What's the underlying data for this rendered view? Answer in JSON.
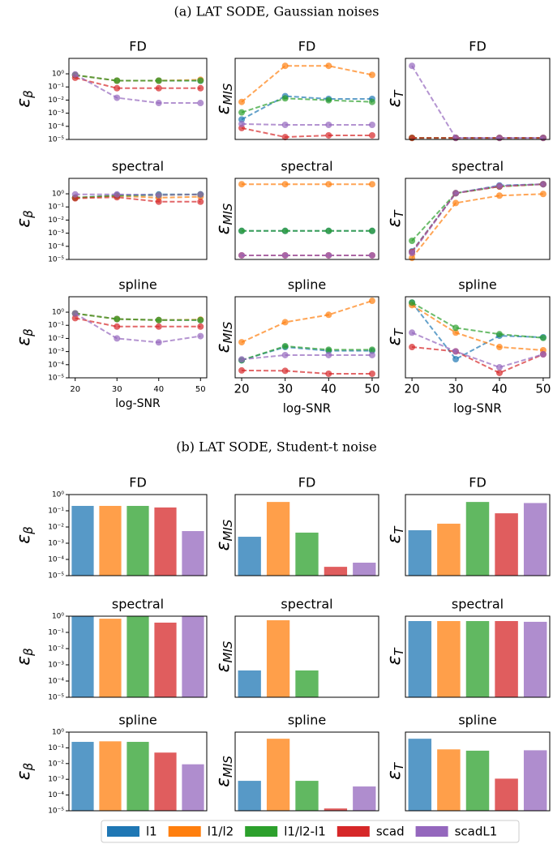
{
  "sections": [
    "(a) LAT SODE, Gaussian noises",
    "(b) LAT SODE, Student-t noise"
  ],
  "legend": [
    {
      "name": "l1",
      "color": "#1f77b4"
    },
    {
      "name": "l1/l2",
      "color": "#ff7f0e"
    },
    {
      "name": "l1/l2-l1",
      "color": "#2ca02c"
    },
    {
      "name": "scad",
      "color": "#d62728"
    },
    {
      "name": "scadL1",
      "color": "#9467bd"
    }
  ],
  "chart_data": [
    {
      "type": "line",
      "title": "FD",
      "ylabel": "ε",
      "ylabel_subscript": "β",
      "x": [
        20,
        30,
        40,
        50
      ],
      "xlim": [
        18.5,
        51.5
      ],
      "ylim": [
        1e-05,
        15
      ],
      "log_y": true,
      "yticks": [
        {
          "value": 1,
          "label": "10⁰"
        },
        {
          "value": 0.1,
          "label": "10⁻¹"
        },
        {
          "value": 0.01,
          "label": "10⁻²"
        },
        {
          "value": 0.001,
          "label": "10⁻³"
        },
        {
          "value": 0.0001,
          "label": "10⁻⁴"
        },
        {
          "value": 1e-05,
          "label": "10⁻⁵"
        }
      ],
      "series": [
        {
          "color": "#1f77b4",
          "values": [
            0.8,
            0.3,
            0.3,
            0.3
          ]
        },
        {
          "color": "#ff7f0e",
          "values": [
            0.8,
            0.3,
            0.3,
            0.35
          ]
        },
        {
          "color": "#2ca02c",
          "values": [
            0.8,
            0.3,
            0.3,
            0.3
          ]
        },
        {
          "color": "#d62728",
          "values": [
            0.5,
            0.08,
            0.08,
            0.08
          ]
        },
        {
          "color": "#9467bd",
          "values": [
            0.9,
            0.015,
            0.006,
            0.006
          ]
        }
      ]
    },
    {
      "type": "line",
      "title": "FD",
      "ylabel": "ε",
      "ylabel_subscript": "MIS",
      "x": [
        20,
        30,
        40,
        50
      ],
      "xlim": [
        18.5,
        51.5
      ],
      "ylim": [
        1e-05,
        10
      ],
      "log_y": true,
      "series": [
        {
          "color": "#1f77b4",
          "values": [
            0.0003,
            0.016,
            0.01,
            0.01
          ]
        },
        {
          "color": "#ff7f0e",
          "values": [
            0.006,
            2.8,
            2.8,
            0.6
          ]
        },
        {
          "color": "#2ca02c",
          "values": [
            0.001,
            0.011,
            0.008,
            0.006
          ]
        },
        {
          "color": "#d62728",
          "values": [
            7e-05,
            1.5e-05,
            2e-05,
            2e-05
          ]
        },
        {
          "color": "#9467bd",
          "values": [
            0.00014,
            0.00012,
            0.00012,
            0.00012
          ]
        }
      ]
    },
    {
      "type": "line",
      "title": "FD",
      "ylabel": "ε",
      "ylabel_subscript": "T",
      "x": [
        20,
        30,
        40,
        50
      ],
      "xlim": [
        18.5,
        51.5
      ],
      "ylim": [
        1e-05,
        10
      ],
      "log_y": true,
      "series": [
        {
          "color": "#1f77b4",
          "values": [
            1.3e-05,
            1.3e-05,
            1.3e-05,
            1.3e-05
          ]
        },
        {
          "color": "#ff7f0e",
          "values": [
            1.3e-05,
            1.3e-05,
            1.3e-05,
            1.3e-05
          ]
        },
        {
          "color": "#2ca02c",
          "values": [
            1.3e-05,
            1.3e-05,
            1.3e-05,
            1.3e-05
          ]
        },
        {
          "color": "#d62728",
          "values": [
            1.3e-05,
            1.3e-05,
            1.3e-05,
            1.3e-05
          ]
        },
        {
          "color": "#9467bd",
          "values": [
            2.8,
            1.3e-05,
            1.3e-05,
            1.3e-05
          ]
        }
      ]
    },
    {
      "type": "line",
      "title": "spectral",
      "ylabel": "ε",
      "ylabel_subscript": "β",
      "x": [
        20,
        30,
        40,
        50
      ],
      "xlim": [
        18.5,
        51.5
      ],
      "ylim": [
        1e-05,
        15
      ],
      "log_y": true,
      "yticks": [
        {
          "value": 1,
          "label": "10⁰"
        },
        {
          "value": 0.1,
          "label": "10⁻¹"
        },
        {
          "value": 0.01,
          "label": "10⁻²"
        },
        {
          "value": 0.001,
          "label": "10⁻³"
        },
        {
          "value": 0.0001,
          "label": "10⁻⁴"
        },
        {
          "value": 1e-05,
          "label": "10⁻⁵"
        }
      ],
      "series": [
        {
          "color": "#1f77b4",
          "values": [
            0.5,
            0.8,
            0.9,
            0.9
          ]
        },
        {
          "color": "#ff7f0e",
          "values": [
            0.5,
            0.7,
            0.5,
            0.6
          ]
        },
        {
          "color": "#2ca02c",
          "values": [
            0.5,
            0.7,
            0.8,
            0.9
          ]
        },
        {
          "color": "#d62728",
          "values": [
            0.45,
            0.55,
            0.25,
            0.25
          ]
        },
        {
          "color": "#9467bd",
          "values": [
            0.9,
            0.9,
            0.8,
            0.9
          ]
        }
      ]
    },
    {
      "type": "line",
      "title": "spectral",
      "ylabel": "ε",
      "ylabel_subscript": "MIS",
      "x": [
        20,
        30,
        40,
        50
      ],
      "xlim": [
        18.5,
        51.5
      ],
      "ylim": [
        1e-05,
        10
      ],
      "log_y": true,
      "series": [
        {
          "color": "#1f77b4",
          "values": [
            0.0013,
            0.0013,
            0.0013,
            0.0013
          ]
        },
        {
          "color": "#ff7f0e",
          "values": [
            3.7,
            3.7,
            3.7,
            3.7
          ]
        },
        {
          "color": "#2ca02c",
          "values": [
            0.0013,
            0.0013,
            0.0013,
            0.0013
          ]
        },
        {
          "color": "#d62728",
          "values": [
            2e-05,
            2e-05,
            2e-05,
            2e-05
          ]
        },
        {
          "color": "#9467bd",
          "values": [
            2e-05,
            2e-05,
            2e-05,
            2e-05
          ]
        }
      ]
    },
    {
      "type": "line",
      "title": "spectral",
      "ylabel": "ε",
      "ylabel_subscript": "T",
      "x": [
        20,
        30,
        40,
        50
      ],
      "xlim": [
        18.5,
        51.5
      ],
      "ylim": [
        1e-05,
        10
      ],
      "log_y": true,
      "series": [
        {
          "color": "#1f77b4",
          "values": [
            4e-05,
            0.8,
            3,
            3.7
          ]
        },
        {
          "color": "#ff7f0e",
          "values": [
            1.3e-05,
            0.15,
            0.53,
            0.7
          ]
        },
        {
          "color": "#2ca02c",
          "values": [
            0.00024,
            0.8,
            2.5,
            3.7
          ]
        },
        {
          "color": "#d62728",
          "values": [
            3.5e-05,
            0.8,
            2.5,
            3.7
          ]
        },
        {
          "color": "#9467bd",
          "values": [
            3e-05,
            0.8,
            2.8,
            3.7
          ]
        }
      ]
    },
    {
      "type": "line",
      "title": "spline",
      "ylabel": "ε",
      "ylabel_subscript": "β",
      "x": [
        20,
        30,
        40,
        50
      ],
      "xlim": [
        18.5,
        51.5
      ],
      "ylim": [
        1e-05,
        15
      ],
      "log_y": true,
      "xticks": [
        20,
        30,
        40,
        50
      ],
      "xlabel": "log-SNR",
      "yticks": [
        {
          "value": 1,
          "label": "10⁰"
        },
        {
          "value": 0.1,
          "label": "10⁻¹"
        },
        {
          "value": 0.01,
          "label": "10⁻²"
        },
        {
          "value": 0.001,
          "label": "10⁻³"
        },
        {
          "value": 0.0001,
          "label": "10⁻⁴"
        },
        {
          "value": 1e-05,
          "label": "10⁻⁵"
        }
      ],
      "series": [
        {
          "color": "#1f77b4",
          "values": [
            0.8,
            0.3,
            0.25,
            0.25
          ]
        },
        {
          "color": "#ff7f0e",
          "values": [
            0.8,
            0.3,
            0.25,
            0.27
          ]
        },
        {
          "color": "#2ca02c",
          "values": [
            0.8,
            0.3,
            0.25,
            0.25
          ]
        },
        {
          "color": "#d62728",
          "values": [
            0.35,
            0.08,
            0.08,
            0.08
          ]
        },
        {
          "color": "#9467bd",
          "values": [
            0.8,
            0.01,
            0.005,
            0.015
          ]
        }
      ]
    },
    {
      "type": "line",
      "title": "spline",
      "ylabel": "ε",
      "ylabel_subscript": "MIS",
      "x": [
        20,
        30,
        40,
        50
      ],
      "xlim": [
        18.5,
        51.5
      ],
      "ylim": [
        1e-05,
        10
      ],
      "log_y": true,
      "xticks": [
        20,
        30,
        40,
        50
      ],
      "xlabel": "log-SNR",
      "series": [
        {
          "color": "#1f77b4",
          "values": [
            0.0002,
            0.0019,
            0.001,
            0.001
          ]
        },
        {
          "color": "#ff7f0e",
          "values": [
            0.0043,
            0.13,
            0.46,
            5
          ]
        },
        {
          "color": "#2ca02c",
          "values": [
            0.0002,
            0.0022,
            0.0012,
            0.0012
          ]
        },
        {
          "color": "#d62728",
          "values": [
            3.5e-05,
            3.3e-05,
            2e-05,
            2e-05
          ]
        },
        {
          "color": "#9467bd",
          "values": [
            0.00023,
            0.00048,
            0.00048,
            0.00048
          ]
        }
      ]
    },
    {
      "type": "line",
      "title": "spline",
      "ylabel": "ε",
      "ylabel_subscript": "T",
      "x": [
        20,
        30,
        40,
        50
      ],
      "xlim": [
        18.5,
        51.5
      ],
      "ylim": [
        1e-05,
        10
      ],
      "log_y": true,
      "xticks": [
        20,
        30,
        40,
        50
      ],
      "xlabel": "log-SNR",
      "series": [
        {
          "color": "#1f77b4",
          "values": [
            3.7,
            0.00024,
            0.013,
            0.01
          ]
        },
        {
          "color": "#ff7f0e",
          "values": [
            2.4,
            0.022,
            0.0019,
            0.0011
          ]
        },
        {
          "color": "#2ca02c",
          "values": [
            3.7,
            0.05,
            0.017,
            0.009
          ]
        },
        {
          "color": "#d62728",
          "values": [
            0.0019,
            0.0009,
            2.3e-05,
            0.00055
          ]
        },
        {
          "color": "#9467bd",
          "values": [
            0.022,
            0.0009,
            6e-05,
            0.00055
          ]
        }
      ]
    },
    {
      "type": "bar",
      "title": "FD",
      "ylabel": "ε",
      "ylabel_subscript": "β",
      "ylim": [
        1e-05,
        1
      ],
      "log_y": true,
      "yticks": [
        {
          "value": 1,
          "label": "10⁰"
        },
        {
          "value": 0.1,
          "label": "10⁻¹"
        },
        {
          "value": 0.01,
          "label": "10⁻²"
        },
        {
          "value": 0.001,
          "label": "10⁻³"
        },
        {
          "value": 0.0001,
          "label": "10⁻⁴"
        },
        {
          "value": 1e-05,
          "label": "10⁻⁵"
        }
      ],
      "values": [
        0.2,
        0.2,
        0.2,
        0.16,
        0.0056
      ],
      "colors": [
        "#1f77b4",
        "#ff7f0e",
        "#2ca02c",
        "#d62728",
        "#9467bd"
      ]
    },
    {
      "type": "bar",
      "title": "FD",
      "ylabel": "ε",
      "ylabel_subscript": "MIS",
      "ylim": [
        1e-05,
        1
      ],
      "log_y": true,
      "values": [
        0.0025,
        0.35,
        0.0045,
        3.5e-05,
        6.3e-05
      ],
      "colors": [
        "#1f77b4",
        "#ff7f0e",
        "#2ca02c",
        "#d62728",
        "#9467bd"
      ]
    },
    {
      "type": "bar",
      "title": "FD",
      "ylabel": "ε",
      "ylabel_subscript": "T",
      "ylim": [
        1e-05,
        1
      ],
      "log_y": true,
      "values": [
        0.0063,
        0.016,
        0.35,
        0.07,
        0.3
      ],
      "colors": [
        "#1f77b4",
        "#ff7f0e",
        "#2ca02c",
        "#d62728",
        "#9467bd"
      ]
    },
    {
      "type": "bar",
      "title": "spectral",
      "ylabel": "ε",
      "ylabel_subscript": "β",
      "ylim": [
        1e-05,
        1
      ],
      "log_y": true,
      "yticks": [
        {
          "value": 1,
          "label": "10⁰"
        },
        {
          "value": 0.1,
          "label": "10⁻¹"
        },
        {
          "value": 0.01,
          "label": "10⁻²"
        },
        {
          "value": 0.001,
          "label": "10⁻³"
        },
        {
          "value": 0.0001,
          "label": "10⁻⁴"
        },
        {
          "value": 1e-05,
          "label": "10⁻⁵"
        }
      ],
      "values": [
        1,
        0.7,
        1,
        0.4,
        1
      ],
      "colors": [
        "#1f77b4",
        "#ff7f0e",
        "#2ca02c",
        "#d62728",
        "#9467bd"
      ]
    },
    {
      "type": "bar",
      "title": "spectral",
      "ylabel": "ε",
      "ylabel_subscript": "MIS",
      "ylim": [
        1e-05,
        1
      ],
      "log_y": true,
      "values": [
        0.00045,
        0.56,
        0.00045,
        null,
        null
      ],
      "colors": [
        "#1f77b4",
        "#ff7f0e",
        "#2ca02c",
        "#d62728",
        "#9467bd"
      ]
    },
    {
      "type": "bar",
      "title": "spectral",
      "ylabel": "ε",
      "ylabel_subscript": "T",
      "ylim": [
        1e-05,
        1
      ],
      "log_y": true,
      "values": [
        0.5,
        0.5,
        0.5,
        0.5,
        0.45
      ],
      "colors": [
        "#1f77b4",
        "#ff7f0e",
        "#2ca02c",
        "#d62728",
        "#9467bd"
      ]
    },
    {
      "type": "bar",
      "title": "spline",
      "ylabel": "ε",
      "ylabel_subscript": "β",
      "ylim": [
        1e-05,
        1
      ],
      "log_y": true,
      "yticks": [
        {
          "value": 1,
          "label": "10⁰"
        },
        {
          "value": 0.1,
          "label": "10⁻¹"
        },
        {
          "value": 0.01,
          "label": "10⁻²"
        },
        {
          "value": 0.001,
          "label": "10⁻³"
        },
        {
          "value": 0.0001,
          "label": "10⁻⁴"
        },
        {
          "value": 1e-05,
          "label": "10⁻⁵"
        }
      ],
      "values": [
        0.24,
        0.26,
        0.24,
        0.05,
        0.009
      ],
      "colors": [
        "#1f77b4",
        "#ff7f0e",
        "#2ca02c",
        "#d62728",
        "#9467bd"
      ]
    },
    {
      "type": "bar",
      "title": "spline",
      "ylabel": "ε",
      "ylabel_subscript": "MIS",
      "ylim": [
        1e-05,
        1
      ],
      "log_y": true,
      "values": [
        0.0008,
        0.38,
        0.0008,
        1.4e-05,
        0.00035
      ],
      "colors": [
        "#1f77b4",
        "#ff7f0e",
        "#2ca02c",
        "#d62728",
        "#9467bd"
      ]
    },
    {
      "type": "bar",
      "title": "spline",
      "ylabel": "ε",
      "ylabel_subscript": "T",
      "ylim": [
        1e-05,
        1
      ],
      "log_y": true,
      "values": [
        0.38,
        0.08,
        0.066,
        0.0011,
        0.07
      ],
      "colors": [
        "#1f77b4",
        "#ff7f0e",
        "#2ca02c",
        "#d62728",
        "#9467bd"
      ]
    }
  ]
}
